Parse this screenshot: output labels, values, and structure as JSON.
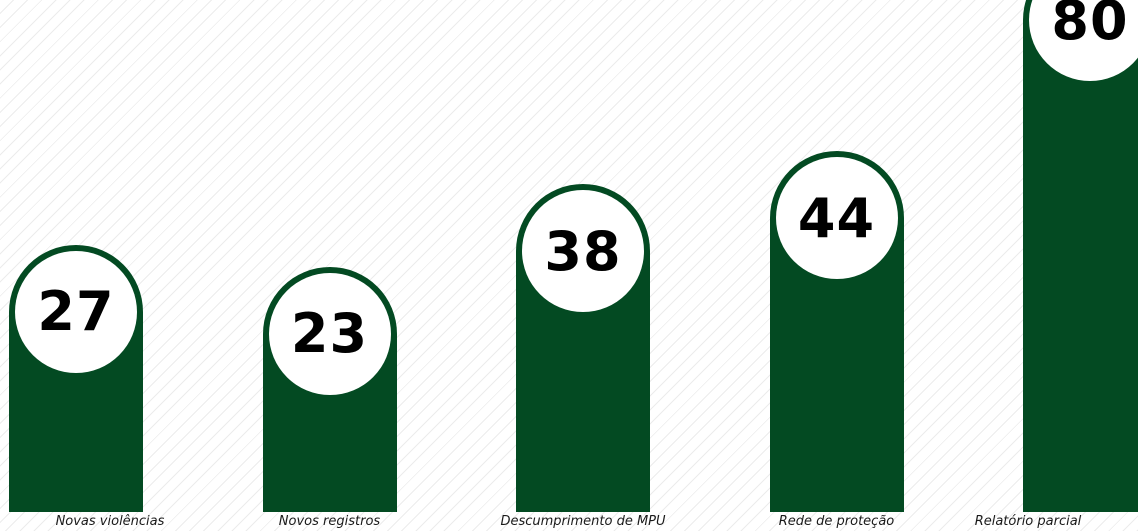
{
  "chart_data": {
    "type": "bar",
    "categories": [
      "Novas violências",
      "Novos registros",
      "Descumprimento de MPU",
      "Rede de proteção",
      "Relatório parcial"
    ],
    "values": [
      27,
      23,
      38,
      44,
      80
    ],
    "title": "",
    "xlabel": "",
    "ylabel": "",
    "grid": false,
    "legend": "none"
  },
  "colors": {
    "bar": "#034a22",
    "value_bubble": "#ffffff",
    "value_text": "#000000",
    "background_stripes": "#ececec"
  }
}
